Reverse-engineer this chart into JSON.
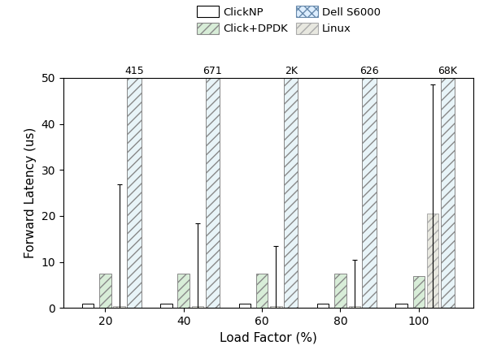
{
  "categories": [
    20,
    40,
    60,
    80,
    100
  ],
  "cat_labels": [
    "20",
    "40",
    "60",
    "80",
    "100"
  ],
  "series_order": [
    "ClickNP",
    "Click+DPDK",
    "Linux"
  ],
  "series": {
    "ClickNP": {
      "values": [
        1.0,
        1.0,
        1.0,
        1.0,
        1.0
      ],
      "yerr": [
        0.0,
        0.0,
        0.0,
        0.0,
        0.0
      ]
    },
    "Click+DPDK": {
      "values": [
        7.5,
        7.5,
        7.5,
        7.5,
        7.0
      ],
      "yerr": [
        0.0,
        0.0,
        0.0,
        0.0,
        0.0
      ]
    },
    "Linux": {
      "values": [
        0.4,
        0.4,
        0.4,
        0.4,
        20.5
      ],
      "yerr": [
        26.5,
        18.0,
        13.0,
        10.0,
        28.0
      ]
    }
  },
  "dell_x_offsets": [
    0.27,
    1.27,
    2.27,
    3.27,
    4.27
  ],
  "dell_labels": [
    "415",
    "671",
    "2K",
    "626",
    "68K"
  ],
  "dell_bar_width": 0.18,
  "bar_width": 0.15,
  "offsets": [
    -0.22,
    0.0,
    0.18
  ],
  "ylim": [
    0,
    50
  ],
  "yticks": [
    0,
    10,
    20,
    30,
    40,
    50
  ],
  "xlabel": "Load Factor (%)",
  "ylabel": "Forward Latency (us)",
  "colors": {
    "ClickNP": "#ffffff",
    "Click+DPDK": "#d8edd8",
    "Linux": "#e8e8e0"
  },
  "hatches": {
    "ClickNP": "",
    "Click+DPDK": "///",
    "Linux": "///"
  },
  "edgecolors": {
    "ClickNP": "#000000",
    "Click+DPDK": "#888888",
    "Linux": "#aaaaaa"
  },
  "dell_facecolor": "#e8f4f8",
  "dell_edgecolor": "#888888",
  "dell_hatch": "///",
  "legend_handles": {
    "ClickNP_fc": "#ffffff",
    "ClickNP_ec": "#000000",
    "ClickDPDK_fc": "#d8edd8",
    "ClickDPDK_ec": "#888888",
    "DellS6000_fc": "#ddeeff",
    "DellS6000_ec": "#6688aa",
    "Linux_fc": "#e8e8e0",
    "Linux_ec": "#aaaaaa"
  }
}
